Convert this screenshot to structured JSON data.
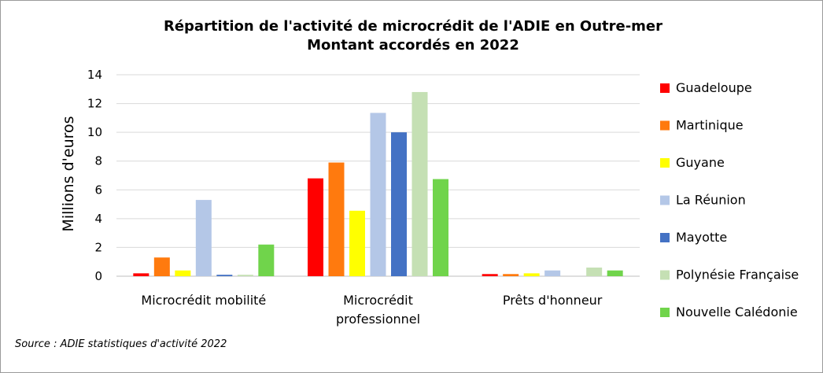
{
  "chart_data": {
    "type": "bar",
    "title": [
      "Répartition de l'activité de microcrédit de l'ADIE en Outre-mer",
      "Montant accordés en 2022"
    ],
    "ylabel": "Millions d'euros",
    "xlabel": "",
    "ylim": [
      0,
      14
    ],
    "yticks": [
      0,
      2,
      4,
      6,
      8,
      10,
      12,
      14
    ],
    "grid": true,
    "legend_position": "right",
    "categories": [
      [
        "Microcrédit mobilité"
      ],
      [
        "Microcrédit",
        "professionnel"
      ],
      [
        "Prêts d'honneur"
      ]
    ],
    "series": [
      {
        "name": "Guadeloupe",
        "color": "#ff0000",
        "values": [
          0.2,
          6.8,
          0.15
        ]
      },
      {
        "name": "Martinique",
        "color": "#ff7a0e",
        "values": [
          1.3,
          7.9,
          0.15
        ]
      },
      {
        "name": "Guyane",
        "color": "#ffff00",
        "values": [
          0.4,
          4.55,
          0.2
        ]
      },
      {
        "name": "La Réunion",
        "color": "#b4c7e7",
        "values": [
          5.3,
          11.35,
          0.4
        ]
      },
      {
        "name": "Mayotte",
        "color": "#4472c4",
        "values": [
          0.1,
          10.0,
          0.0
        ]
      },
      {
        "name": "Polynésie Française",
        "color": "#c5e0b4",
        "values": [
          0.1,
          12.8,
          0.6
        ]
      },
      {
        "name": "Nouvelle Calédonie",
        "color": "#70d44b",
        "values": [
          2.2,
          6.75,
          0.4
        ]
      }
    ]
  },
  "source": "Source : ADIE statistiques d'activité 2022"
}
